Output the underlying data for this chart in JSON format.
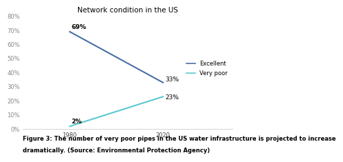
{
  "title": "Network condition in the US",
  "x_values": [
    1980,
    2020
  ],
  "excellent_values": [
    69,
    33
  ],
  "very_poor_values": [
    2,
    23
  ],
  "excellent_labels": [
    "69%",
    "33%"
  ],
  "very_poor_labels": [
    "2%",
    "23%"
  ],
  "excellent_color": "#4a6fa5",
  "very_poor_color": "#5bc8d0",
  "xlim": [
    1960,
    2050
  ],
  "ylim": [
    0,
    80
  ],
  "yticks": [
    0,
    10,
    20,
    30,
    40,
    50,
    60,
    70,
    80
  ],
  "ytick_labels": [
    "0%",
    "10%",
    "20%",
    "30%",
    "40%",
    "50%",
    "60%",
    "70%",
    "80%"
  ],
  "xticks": [
    1980,
    2020
  ],
  "legend_labels": [
    "Excellent",
    "Very poor"
  ],
  "caption_line1": "Figure 3: The number of very poor pipes in the US water infrastructure is projected to increase",
  "caption_line2": "dramatically. (Source: Environmental Protection Agency)",
  "title_fontsize": 7.5,
  "label_fontsize": 6.5,
  "tick_fontsize": 6,
  "caption_fontsize": 6,
  "legend_fontsize": 6,
  "background_color": "#ffffff"
}
